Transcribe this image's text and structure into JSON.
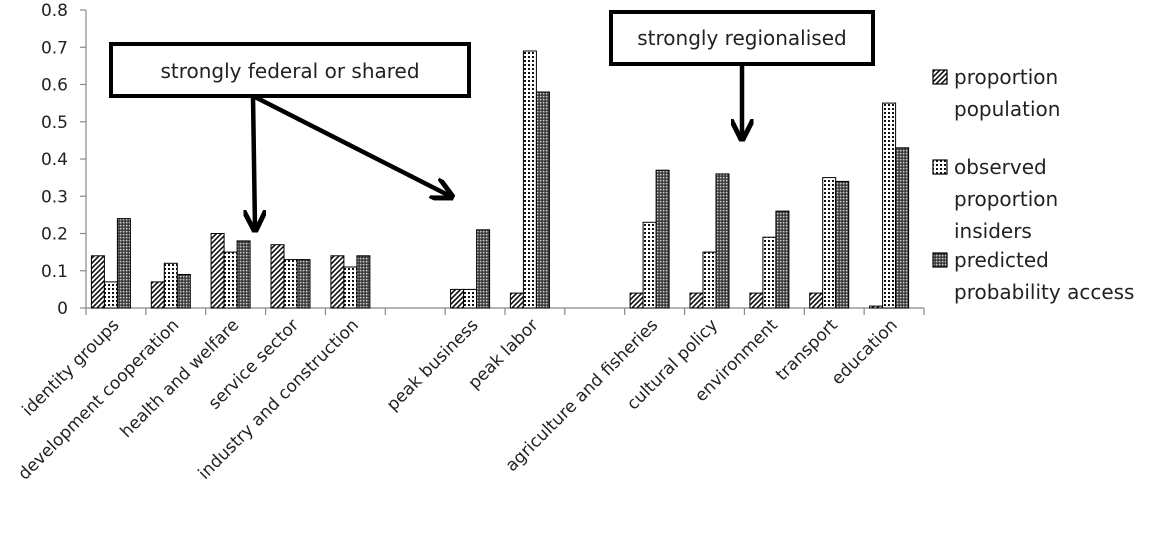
{
  "chart_data": {
    "type": "bar",
    "title": "",
    "xlabel": "",
    "ylabel": "",
    "ylim": [
      0,
      0.8
    ],
    "yticks": [
      "0",
      "0.1",
      "0.2",
      "0.3",
      "0.4",
      "0.5",
      "0.6",
      "0.7",
      "0.8"
    ],
    "grid": false,
    "legend_position": "right",
    "categories": [
      "identity groups",
      "development cooperation",
      "health and welfare",
      "service sector",
      "industry and construction",
      "",
      "peak business",
      "peak labor",
      "",
      "agriculture and fisheries",
      "cultural policy",
      "environment",
      "transport",
      "education"
    ],
    "series": [
      {
        "name": "proportion population",
        "legend_lines": [
          "proportion",
          "population"
        ],
        "pattern": "diagonal",
        "values": [
          0.14,
          0.07,
          0.2,
          0.17,
          0.14,
          null,
          0.05,
          0.04,
          null,
          0.04,
          0.04,
          0.04,
          0.04,
          0.005
        ]
      },
      {
        "name": "observed proportion insiders",
        "legend_lines": [
          "observed",
          "proportion",
          "insiders"
        ],
        "pattern": "dots",
        "values": [
          0.07,
          0.12,
          0.15,
          0.13,
          0.11,
          null,
          0.05,
          0.69,
          null,
          0.23,
          0.15,
          0.19,
          0.35,
          0.55
        ]
      },
      {
        "name": "predicted probability access",
        "legend_lines": [
          "predicted",
          "probability access"
        ],
        "pattern": "dense",
        "values": [
          0.24,
          0.09,
          0.18,
          0.13,
          0.14,
          null,
          0.21,
          0.58,
          null,
          0.37,
          0.36,
          0.26,
          0.34,
          0.43
        ]
      }
    ],
    "annotations": [
      {
        "text": "strongly federal or shared"
      },
      {
        "text": "strongly regionalised"
      }
    ]
  }
}
